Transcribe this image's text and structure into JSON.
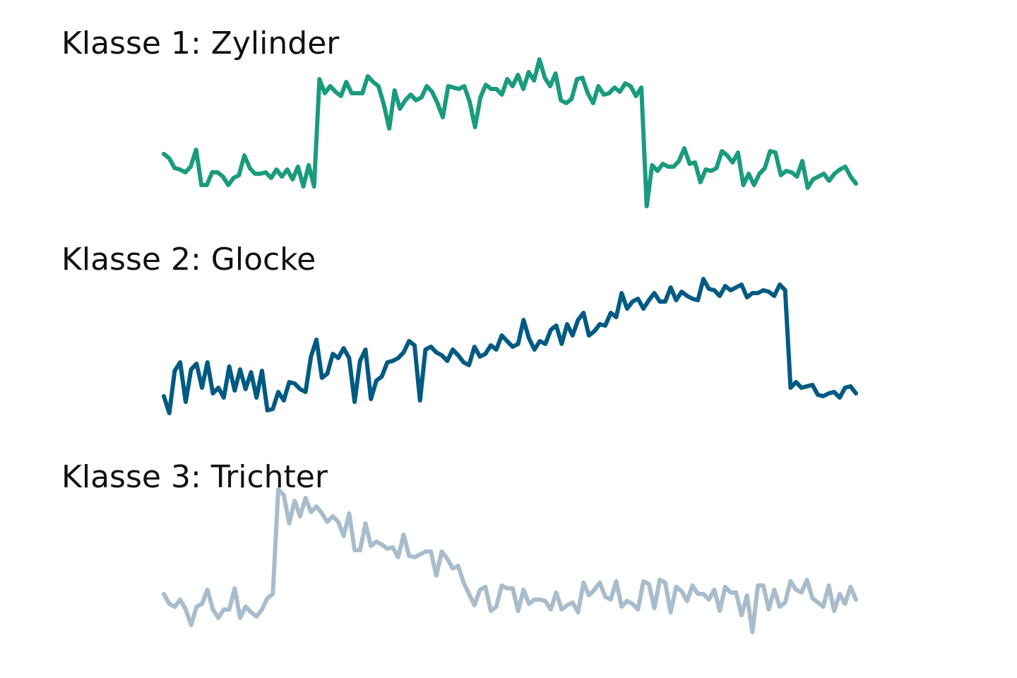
{
  "chart_data": [
    {
      "type": "line",
      "title": "Klasse 1: Zylinder",
      "color": "#1a9b7e",
      "axes": "off",
      "grid": false,
      "x_range": [
        0,
        127
      ],
      "ylim": [
        -1.5,
        4.5
      ],
      "values": [
        0.55,
        0.4,
        0.05,
        0.0,
        -0.1,
        0.1,
        0.7,
        -0.55,
        -0.55,
        -0.1,
        -0.1,
        -0.25,
        -0.55,
        -0.3,
        -0.2,
        0.5,
        0.05,
        -0.15,
        -0.15,
        -0.1,
        -0.3,
        0.0,
        -0.25,
        0.0,
        -0.35,
        0.1,
        -0.6,
        0.15,
        -0.6,
        3.2,
        2.7,
        2.95,
        2.75,
        2.6,
        3.1,
        2.7,
        2.7,
        2.7,
        3.3,
        3.1,
        2.95,
        2.3,
        1.45,
        2.8,
        2.15,
        2.45,
        2.65,
        2.45,
        2.55,
        2.95,
        2.75,
        2.35,
        1.85,
        2.95,
        2.9,
        2.85,
        2.95,
        2.4,
        1.5,
        2.55,
        3.0,
        2.85,
        2.85,
        2.65,
        3.2,
        2.95,
        3.35,
        2.85,
        3.45,
        3.15,
        3.9,
        3.25,
        2.95,
        3.4,
        2.45,
        2.35,
        2.5,
        3.2,
        3.25,
        2.7,
        2.35,
        2.95,
        2.65,
        2.7,
        2.9,
        2.75,
        3.05,
        2.95,
        2.6,
        2.9,
        -1.3,
        0.15,
        -0.05,
        0.2,
        0.1,
        0.1,
        0.3,
        0.75,
        0.2,
        0.25,
        -0.45,
        0.0,
        -0.05,
        0.05,
        0.65,
        0.5,
        0.25,
        0.6,
        -0.55,
        -0.15,
        -0.55,
        -0.15,
        0.05,
        0.65,
        0.6,
        -0.2,
        -0.05,
        -0.1,
        -0.25,
        0.3,
        -0.65,
        -0.35,
        -0.25,
        -0.15,
        -0.4,
        -0.15,
        0.0,
        0.1,
        -0.25,
        -0.5
      ],
      "line_width": 6
    },
    {
      "type": "line",
      "title": "Klasse 2: Glocke",
      "color": "#005a82",
      "axes": "off",
      "grid": false,
      "x_range": [
        0,
        127
      ],
      "ylim": [
        -1.5,
        4.5
      ],
      "values": [
        -0.4,
        -1.0,
        0.5,
        0.8,
        -0.6,
        0.55,
        0.75,
        -0.1,
        0.8,
        -0.3,
        -0.1,
        -0.45,
        0.65,
        -0.2,
        0.55,
        -0.15,
        0.45,
        -0.45,
        0.5,
        -0.9,
        -0.85,
        -0.25,
        -0.55,
        0.1,
        0.05,
        -0.15,
        -0.25,
        1.0,
        1.6,
        0.25,
        0.4,
        1.1,
        0.95,
        1.3,
        0.95,
        -0.6,
        0.85,
        1.25,
        -0.5,
        0.15,
        0.3,
        0.8,
        0.85,
        0.95,
        1.15,
        1.55,
        1.4,
        -0.55,
        1.25,
        1.35,
        1.15,
        1.05,
        0.85,
        1.25,
        1.05,
        0.8,
        0.7,
        1.35,
        1.0,
        1.1,
        1.4,
        1.25,
        1.75,
        1.55,
        1.35,
        1.45,
        2.3,
        1.65,
        1.25,
        1.55,
        1.45,
        1.95,
        2.1,
        1.45,
        2.15,
        1.75,
        2.3,
        2.55,
        1.75,
        1.9,
        2.15,
        2.1,
        2.55,
        2.4,
        3.25,
        2.7,
        2.95,
        3.05,
        2.7,
        3.0,
        3.25,
        2.95,
        2.95,
        3.45,
        3.0,
        3.3,
        3.15,
        3.05,
        3.0,
        3.75,
        3.4,
        3.35,
        3.15,
        3.5,
        3.35,
        3.45,
        3.55,
        3.1,
        3.25,
        3.25,
        3.35,
        3.3,
        3.15,
        3.55,
        3.35,
        -0.1,
        0.1,
        -0.1,
        -0.05,
        0.0,
        -0.35,
        -0.4,
        -0.3,
        -0.25,
        -0.45,
        -0.1,
        -0.05,
        -0.3
      ],
      "line_width": 6
    },
    {
      "type": "line",
      "title": "Klasse 3: Trichter",
      "color": "#a8bccb",
      "axes": "off",
      "grid": false,
      "x_range": [
        0,
        127
      ],
      "ylim": [
        -1.5,
        4.5
      ],
      "values": [
        0.05,
        -0.3,
        -0.4,
        -0.15,
        -0.5,
        -1.05,
        -0.4,
        -0.3,
        0.2,
        -0.5,
        -0.8,
        -0.5,
        -0.5,
        0.25,
        -0.8,
        -0.4,
        -0.6,
        -0.75,
        -0.5,
        -0.1,
        0.05,
        3.75,
        3.55,
        2.55,
        3.35,
        2.8,
        3.45,
        2.95,
        3.15,
        2.9,
        2.6,
        2.8,
        2.6,
        2.1,
        2.9,
        1.6,
        1.6,
        2.55,
        1.75,
        1.9,
        1.8,
        1.65,
        1.7,
        1.35,
        2.15,
        1.4,
        1.35,
        1.45,
        1.55,
        1.55,
        0.7,
        1.55,
        1.3,
        0.95,
        1.05,
        0.45,
        0.05,
        -0.35,
        0.2,
        0.3,
        -0.55,
        -0.4,
        0.35,
        0.25,
        0.25,
        -0.55,
        0.2,
        -0.3,
        -0.15,
        -0.15,
        -0.2,
        -0.5,
        0.1,
        -0.5,
        -0.35,
        -0.25,
        -0.6,
        0.45,
        0.0,
        0.2,
        0.45,
        -0.05,
        -0.15,
        0.5,
        -0.4,
        -0.2,
        -0.3,
        -0.5,
        0.5,
        0.4,
        -0.45,
        0.55,
        0.45,
        -0.6,
        0.3,
        0.15,
        -0.2,
        0.35,
        0.05,
        0.05,
        -0.15,
        0.2,
        -0.55,
        0.3,
        0.1,
        0.1,
        -0.7,
        0.0,
        -1.3,
        0.35,
        0.35,
        -0.5,
        0.2,
        -0.4,
        -0.25,
        0.5,
        0.2,
        0.1,
        0.55,
        -0.1,
        -0.25,
        -0.4,
        0.35,
        -0.55,
        0.05,
        -0.3,
        0.3,
        -0.15
      ],
      "line_width": 6
    }
  ]
}
